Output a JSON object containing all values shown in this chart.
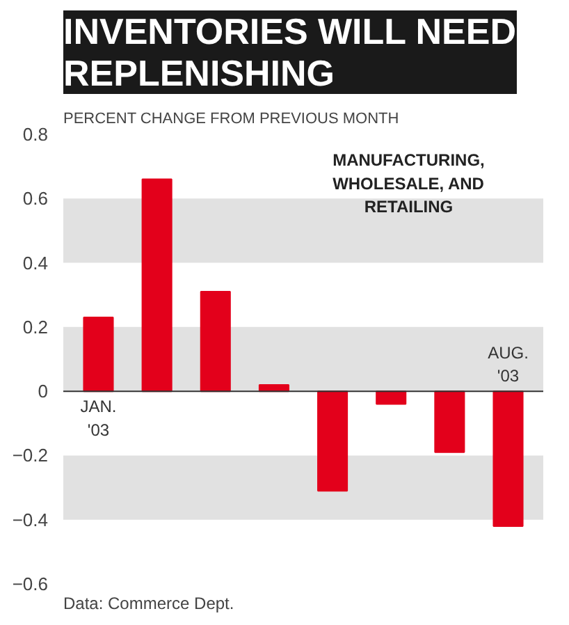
{
  "chart_data": {
    "type": "bar",
    "title": "INVENTORIES WILL NEED\nREPLENISHING",
    "ylabel": "PERCENT CHANGE FROM PREVIOUS MONTH",
    "categories": [
      "JAN.\n'03",
      null,
      null,
      null,
      null,
      null,
      null,
      "AUG.\n'03"
    ],
    "values": [
      0.23,
      0.66,
      0.31,
      0.02,
      -0.31,
      -0.04,
      -0.19,
      -0.42
    ],
    "color": "#e3001b",
    "ylim": [
      -0.6,
      0.8
    ],
    "yticks": [
      -0.6,
      -0.4,
      -0.2,
      0,
      0.2,
      0.4,
      0.6,
      0.8
    ],
    "grid": "y",
    "annotations": [
      "MANUFACTURING,\nWHOLESALE, AND\nRETAILING",
      "Data: Commerce Dept."
    ]
  }
}
